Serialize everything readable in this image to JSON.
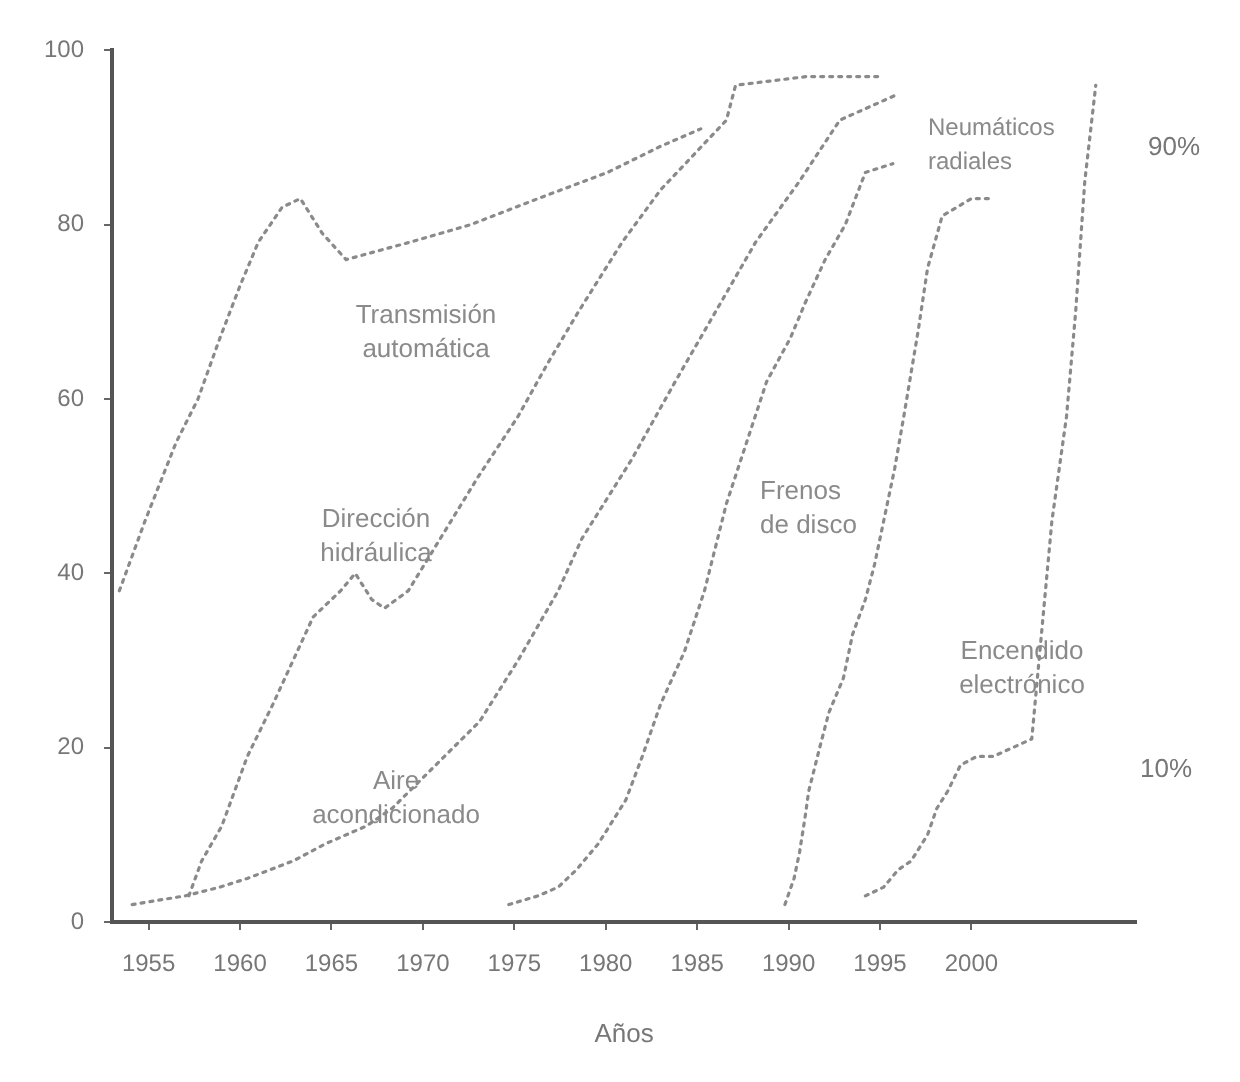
{
  "chart_data": {
    "type": "line",
    "xlabel": "Años",
    "xlim": [
      1953,
      2009
    ],
    "xticks": [
      1955,
      1960,
      1965,
      1970,
      1975,
      1980,
      1985,
      1990,
      1995,
      2000
    ],
    "ylim": [
      0,
      100
    ],
    "yticks": [
      0,
      20,
      40,
      60,
      80,
      100
    ],
    "grid": false,
    "legend": false,
    "marker": "none",
    "line_style": "dotted",
    "series": [
      {
        "name": "Transmisión automática",
        "color": "#8a8a8a",
        "x": [
          1953.4,
          1954.8,
          1956.5,
          1957.7,
          1958.9,
          1960,
          1961,
          1962.3,
          1963.3,
          1964.5,
          1965.8,
          1969.3,
          1972.6,
          1976.3,
          1980.1,
          1983,
          1985.2
        ],
        "values": [
          38,
          46,
          55,
          60,
          67,
          73,
          78,
          82,
          83,
          79,
          76,
          78,
          80,
          83,
          86,
          89,
          91
        ]
      },
      {
        "name": "Dirección hidráulica",
        "color": "#8a8a8a",
        "x": [
          1957.2,
          1957.9,
          1959,
          1960.4,
          1961.8,
          1962.9,
          1964,
          1965.5,
          1966.3,
          1967.2,
          1967.9,
          1969.2,
          1973,
          1975.2,
          1976.8,
          1978.5,
          1980.9,
          1983,
          1986.6,
          1987.1,
          1991,
          1995
        ],
        "values": [
          3,
          7,
          11,
          19,
          25,
          30,
          35,
          38,
          40,
          37,
          36,
          38,
          51,
          58,
          64,
          70,
          78,
          84,
          92,
          96,
          97,
          97
        ]
      },
      {
        "name": "Aire acondicionado",
        "color": "#8a8a8a",
        "x": [
          1954.1,
          1957,
          1958.9,
          1960.4,
          1962.9,
          1964.7,
          1966.9,
          1968.3,
          1973.1,
          1975.2,
          1977.4,
          1978.7,
          1981.4,
          1983.8,
          1986,
          1988.2,
          1990.6,
          1992.8,
          1996
        ],
        "values": [
          2,
          3,
          4,
          5,
          7,
          9,
          11,
          13,
          23,
          30,
          38,
          44,
          53,
          62,
          70,
          78,
          85,
          92,
          95
        ]
      },
      {
        "name": "Frenos de disco",
        "color": "#8a8a8a",
        "x": [
          1974.7,
          1976.3,
          1977.4,
          1978.4,
          1979.6,
          1981.1,
          1982,
          1983,
          1984.3,
          1985.4,
          1986.6,
          1987.7,
          1988.8,
          1990.1,
          1990.9,
          1992,
          1993.1,
          1994.2,
          1995.7
        ],
        "values": [
          2,
          3,
          4,
          6,
          9,
          14,
          19,
          25,
          31,
          38,
          48,
          55,
          62,
          67,
          71,
          76,
          80,
          86,
          87
        ]
      },
      {
        "name": "Neumáticos radiales",
        "color": "#8a8a8a",
        "x": [
          1989.8,
          1990.3,
          1990.6,
          1990.9,
          1991.1,
          1991.7,
          1992.2,
          1993,
          1993.5,
          1994.2,
          1994.7,
          1995.8,
          1996.3,
          1997.1,
          1997.6,
          1998.4,
          2000,
          2001.1
        ],
        "values": [
          2,
          5,
          8,
          12,
          15,
          20,
          24,
          28,
          33,
          37,
          41,
          52,
          58,
          68,
          75,
          81,
          83,
          83
        ]
      },
      {
        "name": "Encendido electrónico",
        "color": "#8a8a8a",
        "x": [
          1994.2,
          1995.2,
          1996,
          1996.7,
          1997.6,
          1998.1,
          1998.7,
          1999.4,
          2000.3,
          2001.2,
          2003.3,
          2004.4,
          2005.2,
          2005.7,
          2006.2,
          2006.8
        ],
        "values": [
          3,
          4,
          6,
          7,
          10,
          13,
          15,
          18,
          19,
          19,
          21,
          46,
          58,
          70,
          85,
          96
        ]
      }
    ],
    "annotations": [
      "90%",
      "10%"
    ]
  }
}
